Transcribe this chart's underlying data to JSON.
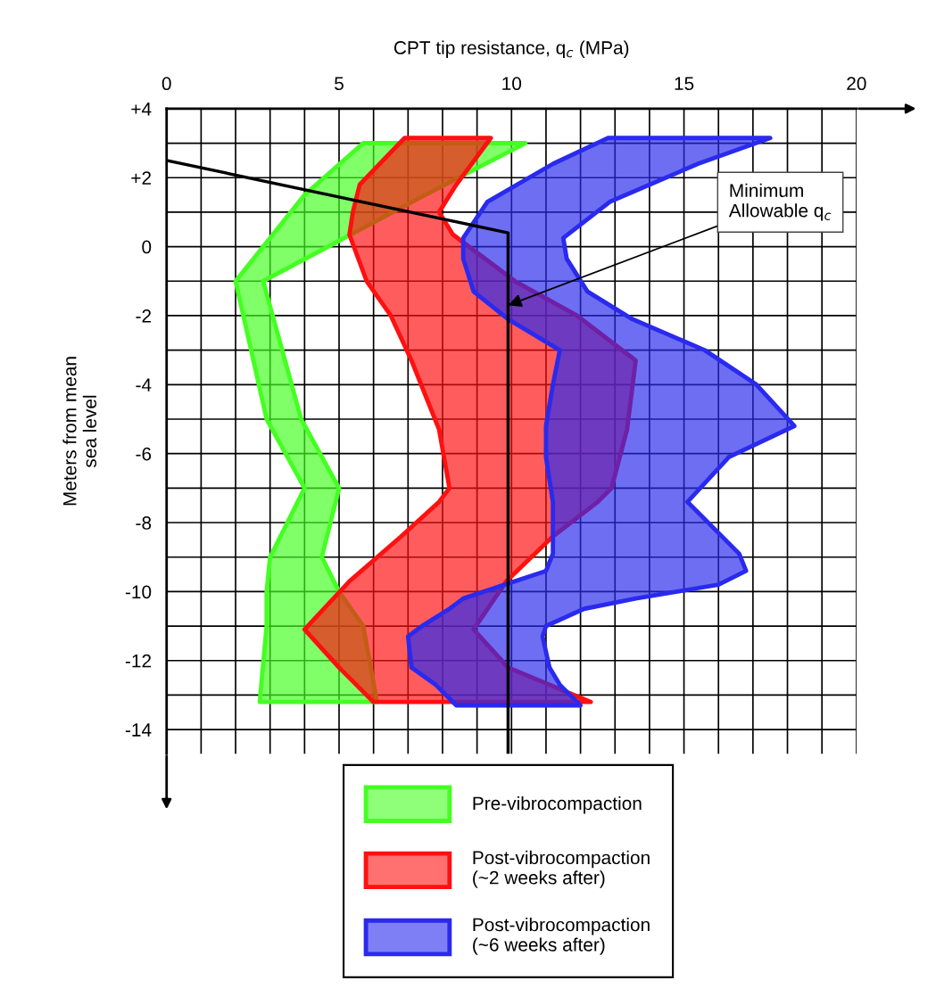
{
  "chart_data": {
    "type": "area",
    "xlabel": "CPT tip resistance, q$_{c}$ (MPa)",
    "ylabel": "Meters from mean\nsea level",
    "xlim": [
      0,
      20
    ],
    "ylim": [
      -14.7,
      4
    ],
    "xticks": [
      0,
      {
        "value": 1,
        "label": null
      },
      {
        "value": 2,
        "label": null
      },
      {
        "value": 3,
        "label": null
      },
      {
        "value": 4,
        "label": null
      },
      5,
      {
        "value": 6,
        "label": null
      },
      {
        "value": 7,
        "label": null
      },
      {
        "value": 8,
        "label": null
      },
      {
        "value": 9,
        "label": null
      },
      10,
      {
        "value": 11,
        "label": null
      },
      {
        "value": 12,
        "label": null
      },
      {
        "value": 13,
        "label": null
      },
      {
        "value": 14,
        "label": null
      },
      15,
      {
        "value": 16,
        "label": null
      },
      {
        "value": 17,
        "label": null
      },
      {
        "value": 18,
        "label": null
      },
      {
        "value": 19,
        "label": null
      },
      20
    ],
    "yticks": [
      {
        "value": 4,
        "label": "+4"
      },
      {
        "value": 3,
        "label": null
      },
      {
        "value": 2,
        "label": "+2"
      },
      {
        "value": 1,
        "label": null
      },
      0,
      {
        "value": -1,
        "label": null
      },
      -2,
      {
        "value": -3,
        "label": null
      },
      -4,
      {
        "value": -5,
        "label": null
      },
      -6,
      {
        "value": -7,
        "label": null
      },
      -8,
      {
        "value": -9,
        "label": null
      },
      -10,
      {
        "value": -11,
        "label": null
      },
      -12,
      {
        "value": -13,
        "label": null
      },
      -14
    ],
    "grid": true,
    "legend": "bottom",
    "series": [
      {
        "name": "Pre-vibrocompaction",
        "color": "#44ff22",
        "x": [
          5.7,
          4.0,
          2.0,
          2.9,
          4.0,
          3.0,
          2.9,
          2.9,
          2.7,
          6.1,
          5.7,
          5.0,
          4.5,
          5.0,
          3.9,
          2.8,
          7.5,
          10.4
        ],
        "values": [
          3.0,
          1.5,
          -1,
          -5,
          -7,
          -9,
          -10,
          -11,
          -13.2,
          -13.2,
          -11,
          -10,
          -9,
          -7,
          -5,
          -1,
          1.5,
          3.0
        ]
      },
      {
        "name": "Post-vibrocompaction\n(~2 weeks after)",
        "color": "#ff1010",
        "x": [
          6.9,
          5.6,
          5.4,
          5.3,
          5.8,
          6.5,
          7.1,
          7.9,
          8.2,
          7.9,
          6.8,
          5.3,
          4.0,
          5.0,
          6.0,
          12.3,
          9.9,
          8.9,
          9.85,
          11.2,
          12.5,
          12.9,
          13.35,
          13.6,
          11.9,
          10.1,
          8.3,
          7.9,
          8.4,
          9.4
        ],
        "values": [
          3.15,
          1.8,
          1,
          0.35,
          -1,
          -2,
          -3.3,
          -5.3,
          -7,
          -7.4,
          -8.4,
          -9.7,
          -11.1,
          -12.2,
          -13.2,
          -13.2,
          -12.2,
          -11.1,
          -9.7,
          -8.4,
          -7.4,
          -7,
          -5.3,
          -3.3,
          -2,
          -1,
          0.35,
          1,
          1.8,
          3.15
        ]
      },
      {
        "name": "Post-vibrocompaction\n(~6 weeks after)",
        "color": "#2a2aee",
        "x": [
          12.8,
          11.2,
          9.3,
          8.6,
          8.6,
          8.9,
          9.9,
          11.4,
          11.2,
          11.0,
          11.0,
          11.2,
          11.2,
          11.0,
          9.8,
          8.6,
          8.2,
          7.4,
          7.0,
          7.1,
          7.8,
          8.4,
          12.0,
          11.4,
          11.1,
          10.9,
          11.0,
          12.1,
          13.6,
          16.0,
          16.8,
          16.6,
          15.1,
          16.3,
          18.2,
          17.1,
          15.6,
          13.5,
          12.2,
          11.6,
          11.5,
          12.85,
          15.4,
          17.5
        ],
        "values": [
          3.15,
          2.4,
          1.3,
          0.25,
          -0.35,
          -1.3,
          -2.1,
          -3.0,
          -4.0,
          -5.2,
          -6.1,
          -7.4,
          -8.9,
          -9.4,
          -9.8,
          -10.2,
          -10.5,
          -11.0,
          -11.3,
          -12.2,
          -12.7,
          -13.3,
          -13.3,
          -12.7,
          -12.2,
          -11.3,
          -11.0,
          -10.5,
          -10.2,
          -9.8,
          -9.4,
          -8.9,
          -7.4,
          -6.1,
          -5.2,
          -4.0,
          -3.0,
          -2.1,
          -1.3,
          -0.35,
          0.25,
          1.3,
          2.4,
          3.15
        ]
      },
      {
        "type": "line",
        "color": "#000000",
        "x": [
          0,
          9.9,
          9.9
        ],
        "values": [
          2.5,
          0.4,
          -14.7
        ]
      }
    ],
    "annotations": [
      {
        "text": "Minimum\nAllowable q$_{c}$",
        "x": 9.9,
        "y": -1.7
      }
    ]
  }
}
